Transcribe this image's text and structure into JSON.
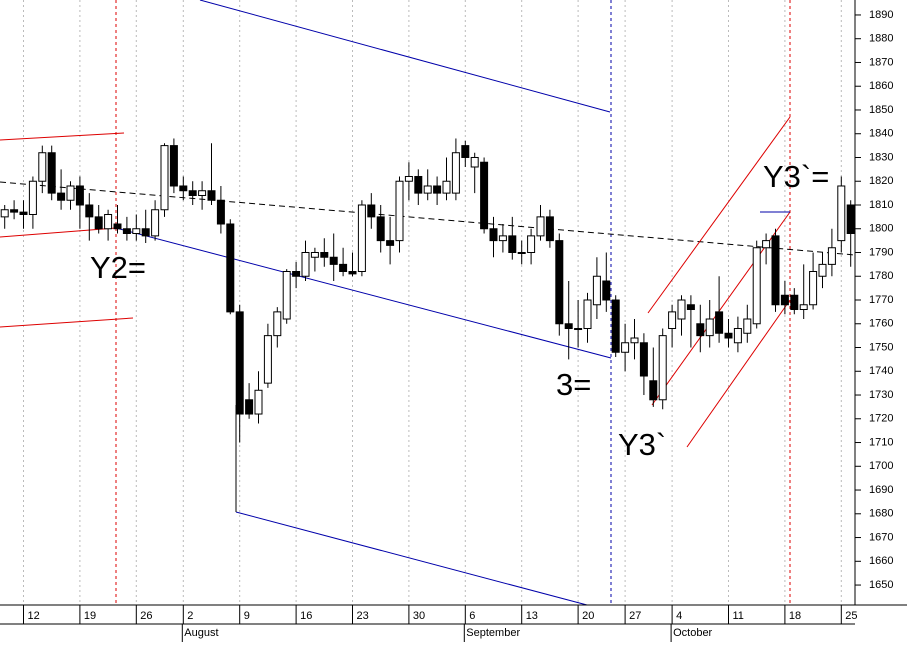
{
  "chart_data": {
    "type": "candlestick",
    "categories": [
      null,
      null,
      "12",
      null,
      null,
      null,
      null,
      null,
      "19",
      null,
      null,
      null,
      null,
      null,
      "26",
      null,
      null,
      null,
      null,
      "2",
      null,
      null,
      null,
      null,
      null,
      "9",
      null,
      null,
      null,
      null,
      null,
      "16",
      null,
      null,
      null,
      null,
      null,
      "23",
      null,
      null,
      null,
      null,
      null,
      "30",
      null,
      null,
      null,
      null,
      null,
      "6",
      null,
      null,
      null,
      null,
      null,
      "13",
      null,
      null,
      null,
      null,
      null,
      "20",
      null,
      null,
      null,
      null,
      "27",
      null,
      null,
      null,
      null,
      "4",
      null,
      null,
      null,
      null,
      null,
      "11",
      null,
      null,
      null,
      null,
      null,
      "18",
      null,
      null,
      null,
      null,
      null,
      "25",
      null
    ],
    "months": [
      "August",
      "September",
      "October"
    ],
    "open": [
      1805,
      1808,
      1807,
      1806,
      1820,
      1832,
      1815,
      1812,
      1818,
      1810,
      1805,
      1800,
      1802,
      1800,
      1798,
      1800,
      1797,
      1808,
      1835,
      1818,
      1816,
      1814,
      1816,
      1812,
      1802,
      1765,
      1728,
      1722,
      1735,
      1755,
      1762,
      1782,
      1780,
      1788,
      1790,
      1788,
      1785,
      1782,
      1782,
      1810,
      1805,
      1795,
      1795,
      1820,
      1822,
      1815,
      1818,
      1815,
      1815,
      1835,
      1826,
      1828,
      1800,
      1795,
      1797,
      1790,
      1790,
      1797,
      1805,
      1795,
      1760,
      1758,
      1758,
      1768,
      1778,
      1770,
      1748,
      1752,
      1752,
      1736,
      1728,
      1758,
      1762,
      1768,
      1760,
      1755,
      1765,
      1756,
      1752,
      1756,
      1760,
      1792,
      1797,
      1772,
      1772,
      1766,
      1768,
      1780,
      1785,
      1795,
      1810
    ],
    "high": [
      1810,
      1812,
      1812,
      1822,
      1835,
      1835,
      1825,
      1820,
      1822,
      1815,
      1810,
      1808,
      1810,
      1805,
      1806,
      1808,
      1812,
      1836,
      1838,
      1822,
      1820,
      1820,
      1836,
      1818,
      1804,
      1768,
      1735,
      1740,
      1760,
      1767,
      1783,
      1786,
      1795,
      1792,
      1796,
      1798,
      1792,
      1790,
      1812,
      1815,
      1810,
      1805,
      1822,
      1828,
      1825,
      1825,
      1822,
      1830,
      1838,
      1837,
      1832,
      1830,
      1805,
      1802,
      1805,
      1795,
      1800,
      1810,
      1808,
      1798,
      1778,
      1770,
      1773,
      1788,
      1790,
      1772,
      1760,
      1762,
      1756,
      1750,
      1758,
      1768,
      1772,
      1772,
      1768,
      1770,
      1780,
      1762,
      1763,
      1768,
      1795,
      1798,
      1800,
      1778,
      1775,
      1785,
      1790,
      1790,
      1800,
      1822,
      1812
    ],
    "low": [
      1800,
      1804,
      1800,
      1800,
      1815,
      1812,
      1808,
      1808,
      1800,
      1795,
      1798,
      1795,
      1798,
      1795,
      1795,
      1794,
      1795,
      1805,
      1815,
      1812,
      1810,
      1808,
      1810,
      1798,
      1764,
      1710,
      1720,
      1718,
      1733,
      1750,
      1760,
      1775,
      1778,
      1782,
      1784,
      1778,
      1780,
      1780,
      1780,
      1800,
      1790,
      1785,
      1790,
      1812,
      1810,
      1812,
      1810,
      1812,
      1812,
      1826,
      1815,
      1798,
      1788,
      1790,
      1787,
      1785,
      1785,
      1795,
      1792,
      1755,
      1745,
      1750,
      1752,
      1762,
      1765,
      1746,
      1740,
      1745,
      1730,
      1725,
      1724,
      1750,
      1755,
      1750,
      1748,
      1750,
      1752,
      1750,
      1748,
      1752,
      1758,
      1785,
      1765,
      1764,
      1764,
      1762,
      1766,
      1775,
      1780,
      1790,
      1784
    ],
    "close": [
      1808,
      1807,
      1806,
      1820,
      1832,
      1815,
      1812,
      1818,
      1810,
      1805,
      1800,
      1806,
      1800,
      1798,
      1800,
      1797,
      1808,
      1835,
      1818,
      1816,
      1814,
      1816,
      1812,
      1802,
      1765,
      1722,
      1722,
      1732,
      1755,
      1765,
      1782,
      1780,
      1790,
      1790,
      1788,
      1785,
      1782,
      1781,
      1810,
      1805,
      1795,
      1793,
      1820,
      1822,
      1815,
      1818,
      1815,
      1820,
      1832,
      1830,
      1830,
      1800,
      1795,
      1797,
      1790,
      1790,
      1797,
      1805,
      1795,
      1760,
      1758,
      1758,
      1770,
      1780,
      1770,
      1748,
      1752,
      1754,
      1738,
      1728,
      1755,
      1765,
      1770,
      1766,
      1755,
      1762,
      1756,
      1754,
      1758,
      1762,
      1792,
      1795,
      1768,
      1768,
      1766,
      1768,
      1782,
      1785,
      1792,
      1818,
      1798
    ],
    "up_color": "#ffffff",
    "down_color": "#000000",
    "color": "#000000",
    "ylim": [
      1641.6,
      1896.3
    ],
    "yticks": [
      1650,
      1660,
      1670,
      1680,
      1690,
      1700,
      1710,
      1720,
      1730,
      1740,
      1750,
      1760,
      1770,
      1780,
      1790,
      1800,
      1810,
      1820,
      1830,
      1840,
      1850,
      1860,
      1870,
      1880,
      1890
    ],
    "xgrid": true,
    "annotations": [
      "Y2=",
      "3=",
      "Y3`",
      "Y3`="
    ]
  }
}
